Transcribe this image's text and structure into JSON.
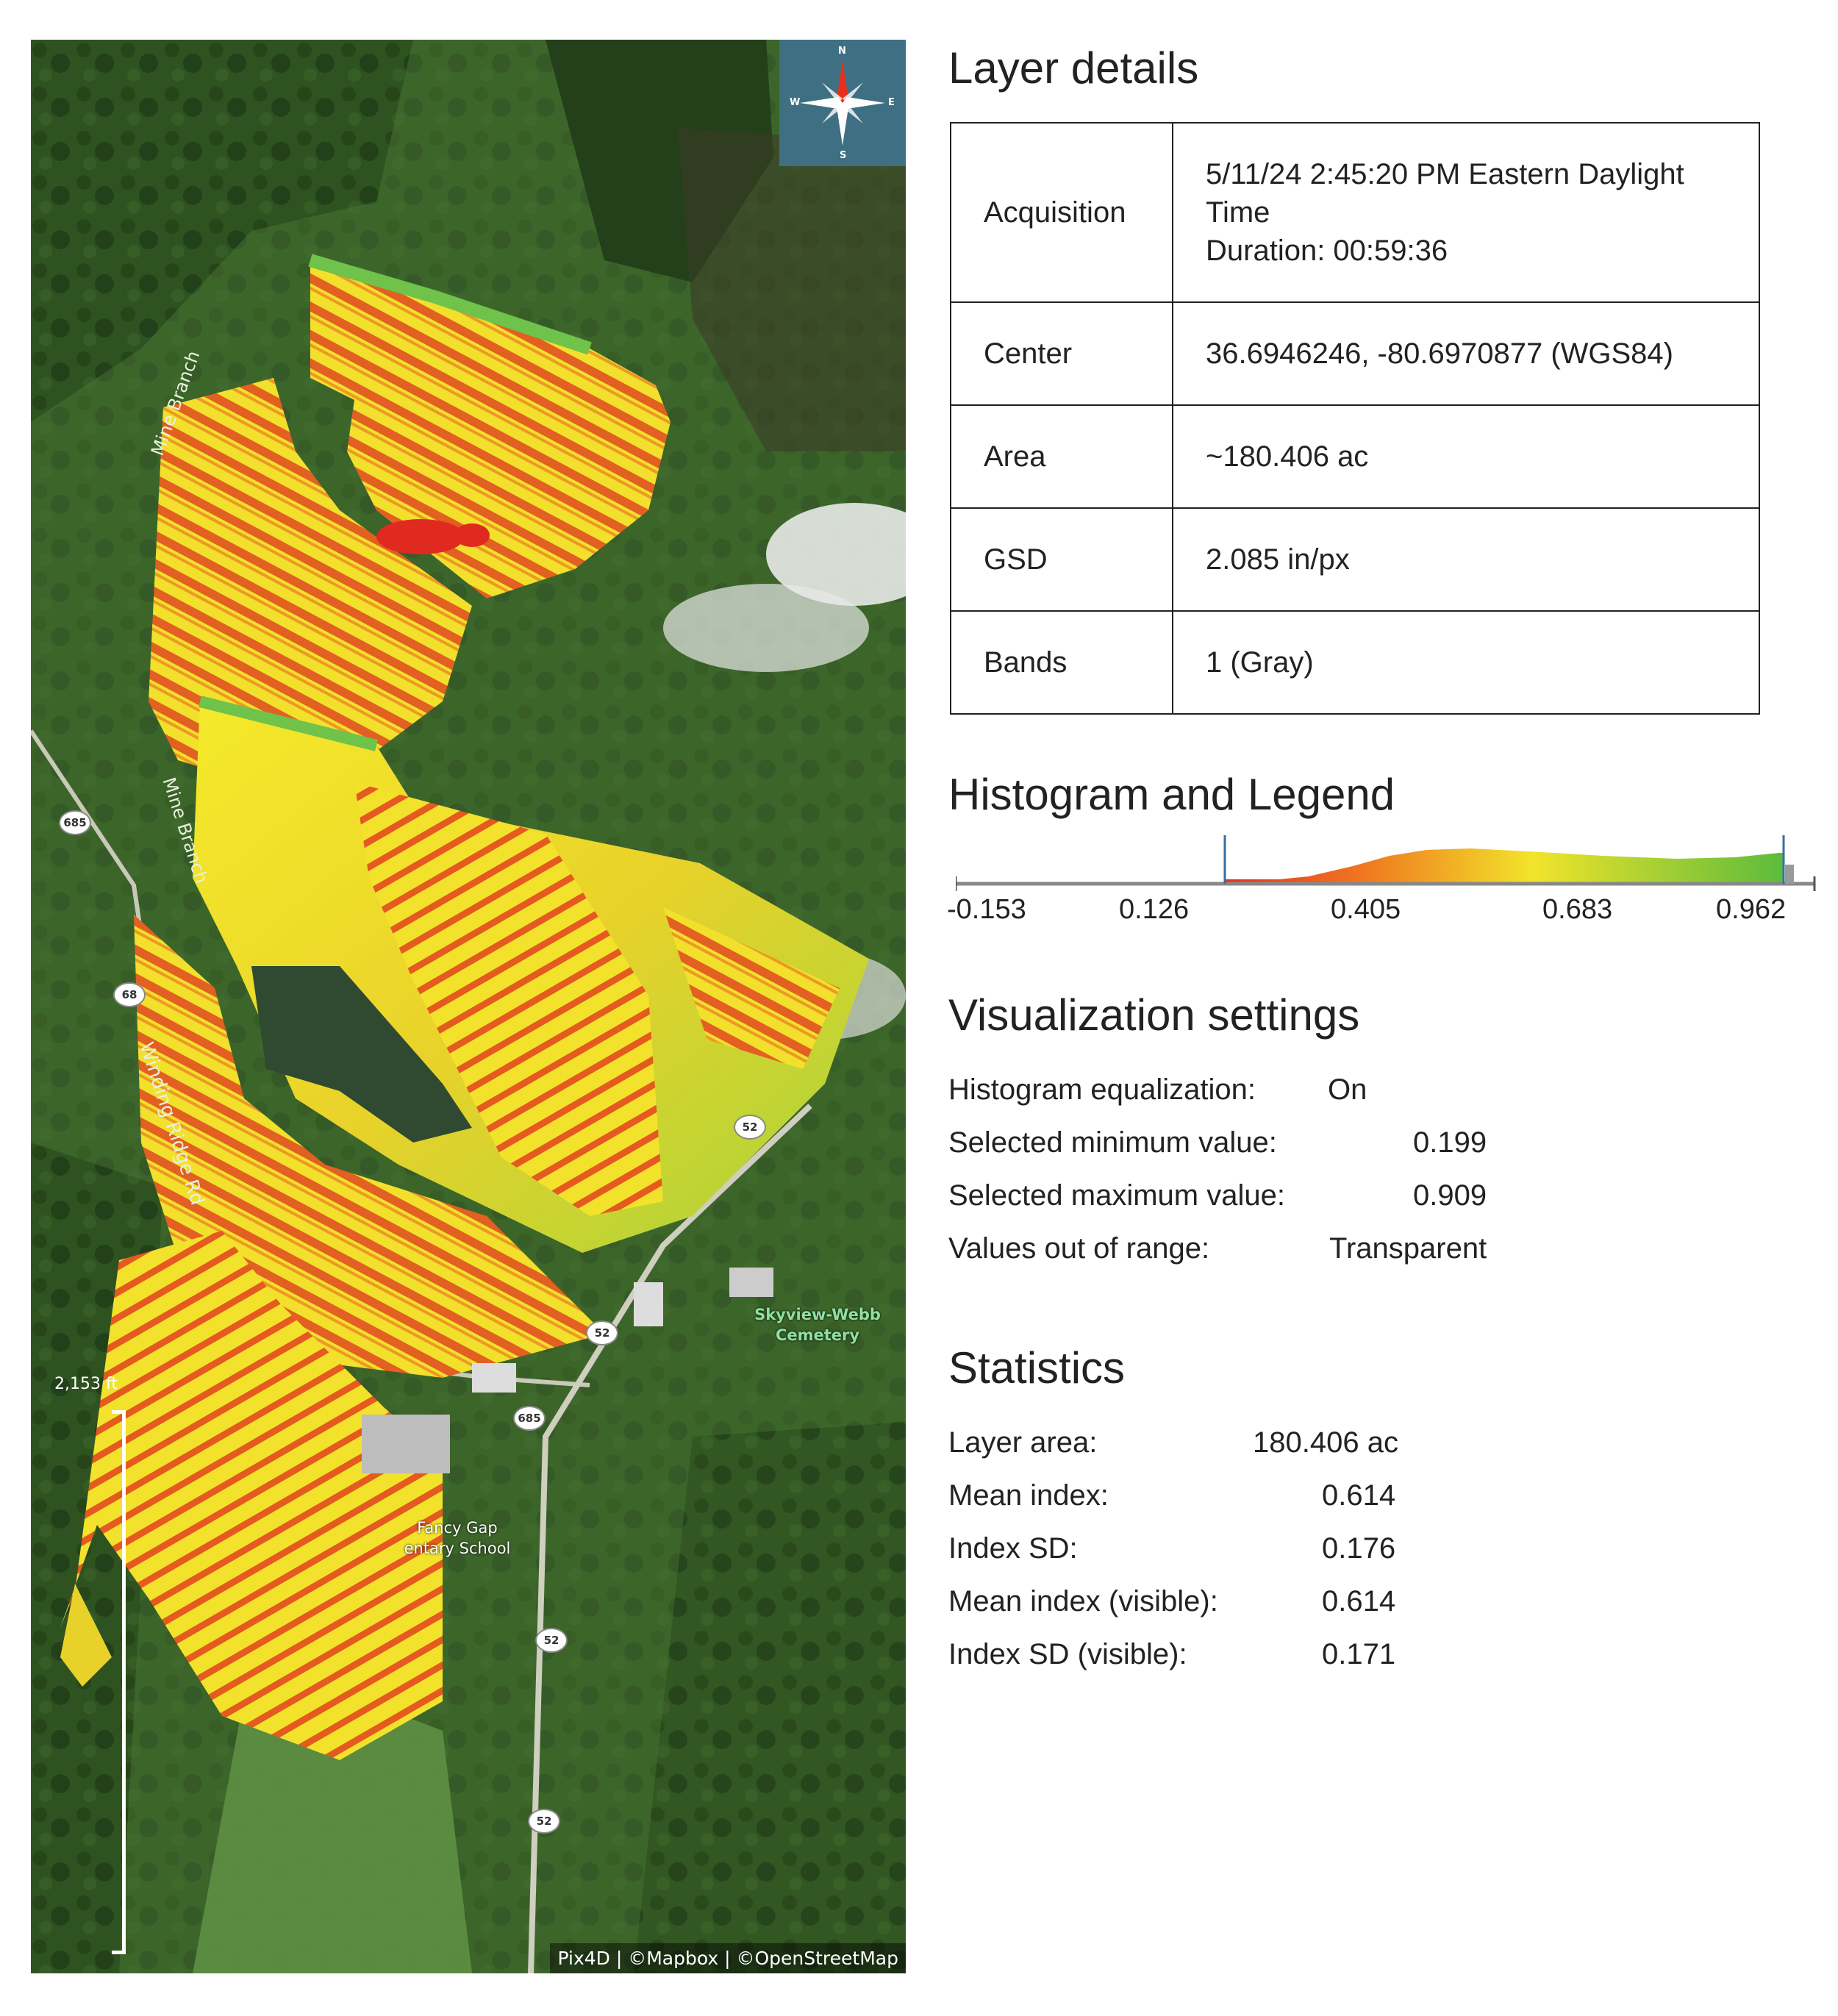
{
  "map": {
    "compass": {
      "n": "N",
      "s": "S",
      "e": "E",
      "w": "W"
    },
    "scale_label": "2,153 ft",
    "attribution": "Pix4D | ©Mapbox | ©OpenStreetMap",
    "labels": {
      "mine_branch_1": "Mine Branch",
      "mine_branch_2": "Mine Branch",
      "winding_ridge": "Winding Ridge Rd",
      "cemetery": "Skyview-Webb\nCemetery",
      "school": "Fancy Gap\nentary School"
    },
    "shields": [
      "685",
      "68",
      "52",
      "52",
      "685",
      "52",
      "52"
    ]
  },
  "layer_details": {
    "title": "Layer details",
    "rows": [
      {
        "key": "Acquisition",
        "value": "5/11/24 2:45:20 PM Eastern Daylight Time",
        "value2": "Duration: 00:59:36"
      },
      {
        "key": "Center",
        "value": "36.6946246, -80.6970877 (WGS84)"
      },
      {
        "key": "Area",
        "value": "~180.406 ac"
      },
      {
        "key": "GSD",
        "value": "2.085 in/px"
      },
      {
        "key": "Bands",
        "value": "1 (Gray)"
      }
    ]
  },
  "histogram": {
    "title": "Histogram and Legend",
    "ticks": [
      "-0.153",
      "0.126",
      "0.405",
      "0.683",
      "0.962"
    ],
    "selected_min": 0.199,
    "selected_max": 0.909,
    "colors": {
      "low": "#e53020",
      "mid": "#f2e42a",
      "high": "#5cbb3c"
    }
  },
  "visualization": {
    "title": "Visualization settings",
    "rows": [
      {
        "key": "Histogram equalization:",
        "value": "On"
      },
      {
        "key": "Selected minimum value:",
        "value": "0.199"
      },
      {
        "key": "Selected maximum value:",
        "value": "0.909"
      },
      {
        "key": "Values out of range:",
        "value": "Transparent"
      }
    ]
  },
  "statistics": {
    "title": "Statistics",
    "rows": [
      {
        "key": "Layer area:",
        "value": "180.406 ac"
      },
      {
        "key": "Mean index:",
        "value": "0.614"
      },
      {
        "key": "Index SD:",
        "value": "0.176"
      },
      {
        "key": "Mean index (visible):",
        "value": "0.614"
      },
      {
        "key": "Index SD (visible):",
        "value": "0.171"
      }
    ]
  }
}
